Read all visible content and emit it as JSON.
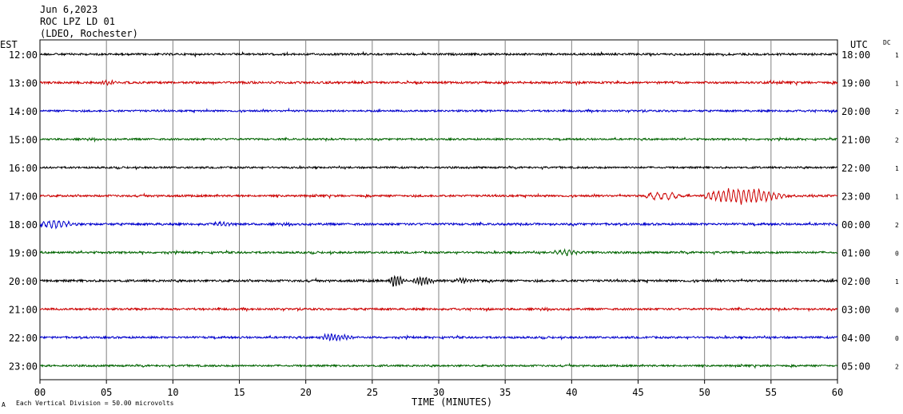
{
  "header": {
    "line1": "Jun 6,2023",
    "line2": "ROC LPZ LD 01",
    "line3": "(LDEO, Rochester)"
  },
  "left_zone_label": "EST",
  "right_zone_label": "UTC",
  "dc_label": "DC",
  "footer_note": "Each Vertical Division =   50.00 microvolts",
  "footer_marker": "A",
  "colors": {
    "black": "#000000",
    "red": "#cc0000",
    "blue": "#0000cc",
    "green": "#006400",
    "grid": "#808080"
  },
  "chart_data": {
    "type": "line",
    "title": "",
    "xlabel": "TIME (MINUTES)",
    "ylabel": "",
    "xlim": [
      0,
      60
    ],
    "x_ticks": [
      "00",
      "05",
      "10",
      "15",
      "20",
      "25",
      "30",
      "35",
      "40",
      "45",
      "50",
      "55",
      "60"
    ],
    "grid": true,
    "rows": [
      {
        "est": "12:00",
        "utc": "18:00",
        "dc": "1",
        "color": "black",
        "amp": 1.2,
        "events": []
      },
      {
        "est": "13:00",
        "utc": "19:00",
        "dc": "1",
        "color": "red",
        "amp": 1.3,
        "events": [
          {
            "start": 4.5,
            "end": 6.5,
            "peak": 2.5,
            "period": 0.25
          }
        ]
      },
      {
        "est": "14:00",
        "utc": "20:00",
        "dc": "2",
        "color": "blue",
        "amp": 1.1,
        "events": []
      },
      {
        "est": "15:00",
        "utc": "21:00",
        "dc": "2",
        "color": "green",
        "amp": 1.1,
        "events": []
      },
      {
        "est": "16:00",
        "utc": "22:00",
        "dc": "1",
        "color": "black",
        "amp": 1.1,
        "events": []
      },
      {
        "est": "17:00",
        "utc": "23:00",
        "dc": "1",
        "color": "red",
        "amp": 1.2,
        "events": [
          {
            "start": 45.5,
            "end": 50.0,
            "peak": 5,
            "period": 0.55
          },
          {
            "start": 50.0,
            "end": 60.0,
            "peak": 9,
            "period": 0.38
          }
        ]
      },
      {
        "est": "18:00",
        "utc": "00:00",
        "dc": "2",
        "color": "blue",
        "amp": 1.3,
        "events": [
          {
            "start": 0.0,
            "end": 4.0,
            "peak": 5,
            "period": 0.38
          },
          {
            "start": 13.0,
            "end": 15.5,
            "peak": 2.5,
            "period": 0.3
          }
        ]
      },
      {
        "est": "19:00",
        "utc": "01:00",
        "dc": "0",
        "color": "green",
        "amp": 1.2,
        "events": [
          {
            "start": 38.5,
            "end": 42.0,
            "peak": 3,
            "period": 0.35
          }
        ]
      },
      {
        "est": "20:00",
        "utc": "02:00",
        "dc": "1",
        "color": "black",
        "amp": 1.3,
        "events": [
          {
            "start": 26.3,
            "end": 28.0,
            "peak": 9,
            "period": 0.22
          },
          {
            "start": 28.0,
            "end": 31.0,
            "peak": 5,
            "period": 0.22
          },
          {
            "start": 31.0,
            "end": 34.0,
            "peak": 2.5,
            "period": 0.22
          }
        ]
      },
      {
        "est": "21:00",
        "utc": "03:00",
        "dc": "0",
        "color": "red",
        "amp": 1.2,
        "events": []
      },
      {
        "est": "22:00",
        "utc": "04:00",
        "dc": "0",
        "color": "blue",
        "amp": 1.2,
        "events": [
          {
            "start": 21.0,
            "end": 25.3,
            "peak": 4,
            "period": 0.25
          }
        ]
      },
      {
        "est": "23:00",
        "utc": "05:00",
        "dc": "2",
        "color": "green",
        "amp": 1.1,
        "events": []
      }
    ]
  }
}
